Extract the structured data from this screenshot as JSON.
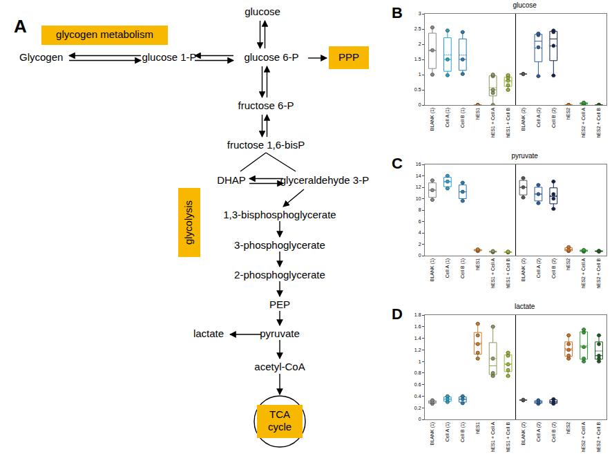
{
  "diagram": {
    "panel_label": "A",
    "boxes": {
      "glycogen_metabolism": "glycogen metabolism",
      "ppp": "PPP",
      "glycolysis": "glycolysis",
      "tca": "TCA cycle"
    },
    "nodes": {
      "glucose": "glucose",
      "glycogen": "Glycogen",
      "g1p": "glucose 1-P",
      "g6p": "glucose 6-P",
      "f6p": "fructose 6-P",
      "f16bp": "fructose 1,6-bisP",
      "dhap": "DHAP",
      "g3p": "glyceraldehyde 3-P",
      "bpg": "1,3-bisphosphoglycerate",
      "pg3": "3-phosphoglycerate",
      "pg2": "2-phosphoglycerate",
      "pep": "PEP",
      "pyruvate": "pyruvate",
      "lactate": "lactate",
      "acetyl": "acetyl-CoA"
    }
  },
  "chart_data": [
    {
      "type": "box",
      "panel_label": "B",
      "title": "glucose",
      "categories": [
        "BLANK (1)",
        "Cell A (1)",
        "Cell B (1)",
        "hES1",
        "hES1 + Cell A",
        "hES1 + Cell B",
        "BLANK (2)",
        "Cell A (2)",
        "Cell B (2)",
        "hES2",
        "hES2 + Cell A",
        "hES2 + Cell B"
      ],
      "values": [
        [
          1.0,
          1.8,
          2.55
        ],
        [
          0.98,
          1.5,
          2.45
        ],
        [
          1.02,
          1.5,
          2.4
        ],
        [
          0,
          0,
          0
        ],
        [
          0.0,
          0.4,
          0.5,
          0.95,
          1.0
        ],
        [
          0.5,
          0.65,
          0.8,
          0.9,
          0.98
        ],
        [
          1.02,
          1.02,
          1.02
        ],
        [
          0.95,
          1.9,
          2.3,
          2.35
        ],
        [
          0.97,
          1.95,
          2.4,
          2.45
        ],
        [
          0,
          0,
          0
        ],
        [
          0.02,
          0.05,
          0.08
        ],
        [
          0,
          0,
          0.01
        ]
      ],
      "colors": [
        "#888888",
        "#2aa0c8",
        "#2a7ab0",
        "#c87a2a",
        "#8a9a5a",
        "#9ab830",
        "#555555",
        "#2a5aa0",
        "#10204a",
        "#d07020",
        "#30a030",
        "#1a5a1a"
      ],
      "ylim": [
        0,
        3
      ],
      "yticks": [
        0,
        0.5,
        1,
        1.5,
        2,
        2.5,
        3
      ],
      "grid": false
    },
    {
      "type": "box",
      "panel_label": "C",
      "title": "pyruvate",
      "categories": [
        "BLANK (1)",
        "Cell A (1)",
        "Cell B (1)",
        "hES1",
        "hES1 + Cell A",
        "hES1 + Cell B",
        "BLANK (2)",
        "Cell A (2)",
        "Cell B (2)",
        "hES2",
        "hES2 + Cell A",
        "hES2 + Cell B"
      ],
      "values": [
        [
          9.8,
          11.5,
          13.2
        ],
        [
          11.8,
          13.0,
          14.0
        ],
        [
          9.6,
          11.2,
          12.8
        ],
        [
          0.8,
          1.0,
          1.1
        ],
        [
          0.6,
          0.7,
          0.8
        ],
        [
          0.55,
          0.65,
          0.7
        ],
        [
          10.2,
          12.0,
          13.6
        ],
        [
          9.2,
          10.8,
          12.4
        ],
        [
          8.2,
          10.0,
          10.8,
          13.0
        ],
        [
          0.8,
          1.0,
          1.5
        ],
        [
          0.7,
          0.9,
          1.0
        ],
        [
          0.7,
          0.8,
          0.85
        ]
      ],
      "colors": [
        "#888888",
        "#2aa0c8",
        "#2a7ab0",
        "#c87a2a",
        "#8a9a5a",
        "#9ab830",
        "#555555",
        "#2a5aa0",
        "#10204a",
        "#d07020",
        "#30a030",
        "#1a5a1a"
      ],
      "ylim": [
        0,
        16
      ],
      "yticks": [
        0,
        2,
        4,
        6,
        8,
        10,
        12,
        14,
        16
      ],
      "grid": false
    },
    {
      "type": "box",
      "panel_label": "D",
      "title": "lactate",
      "categories": [
        "BLANK (1)",
        "Cell A (1)",
        "Cell B (1)",
        "hES1",
        "hES1 + Cell A",
        "hES1 + Cell B",
        "BLANK (2)",
        "Cell A (2)",
        "Cell B (2)",
        "hES2",
        "hES2 + Cell A",
        "hES2 + Cell B"
      ],
      "values": [
        [
          0.27,
          0.3,
          0.33
        ],
        [
          0.3,
          0.35,
          0.4
        ],
        [
          0.28,
          0.35,
          0.4
        ],
        [
          1.05,
          1.15,
          1.3,
          1.45,
          1.65
        ],
        [
          0.75,
          0.8,
          1.05,
          1.6
        ],
        [
          0.75,
          0.85,
          0.95,
          1.1,
          1.15
        ],
        [
          0.33,
          0.33,
          0.34
        ],
        [
          0.27,
          0.3,
          0.33
        ],
        [
          0.27,
          0.3,
          0.35
        ],
        [
          1.05,
          1.1,
          1.2,
          1.3,
          1.45
        ],
        [
          1.0,
          1.05,
          1.25,
          1.5,
          1.55
        ],
        [
          1.0,
          1.05,
          1.1,
          1.3,
          1.45
        ]
      ],
      "colors": [
        "#888888",
        "#2aa0c8",
        "#2a7ab0",
        "#c87a2a",
        "#8a9a5a",
        "#9ab830",
        "#555555",
        "#2a5aa0",
        "#10204a",
        "#d07020",
        "#30a030",
        "#1a5a1a"
      ],
      "ylim": [
        0,
        1.8
      ],
      "yticks": [
        0,
        0.2,
        0.4,
        0.6,
        0.8,
        1,
        1.2,
        1.4,
        1.6,
        1.8
      ],
      "grid": false
    }
  ]
}
